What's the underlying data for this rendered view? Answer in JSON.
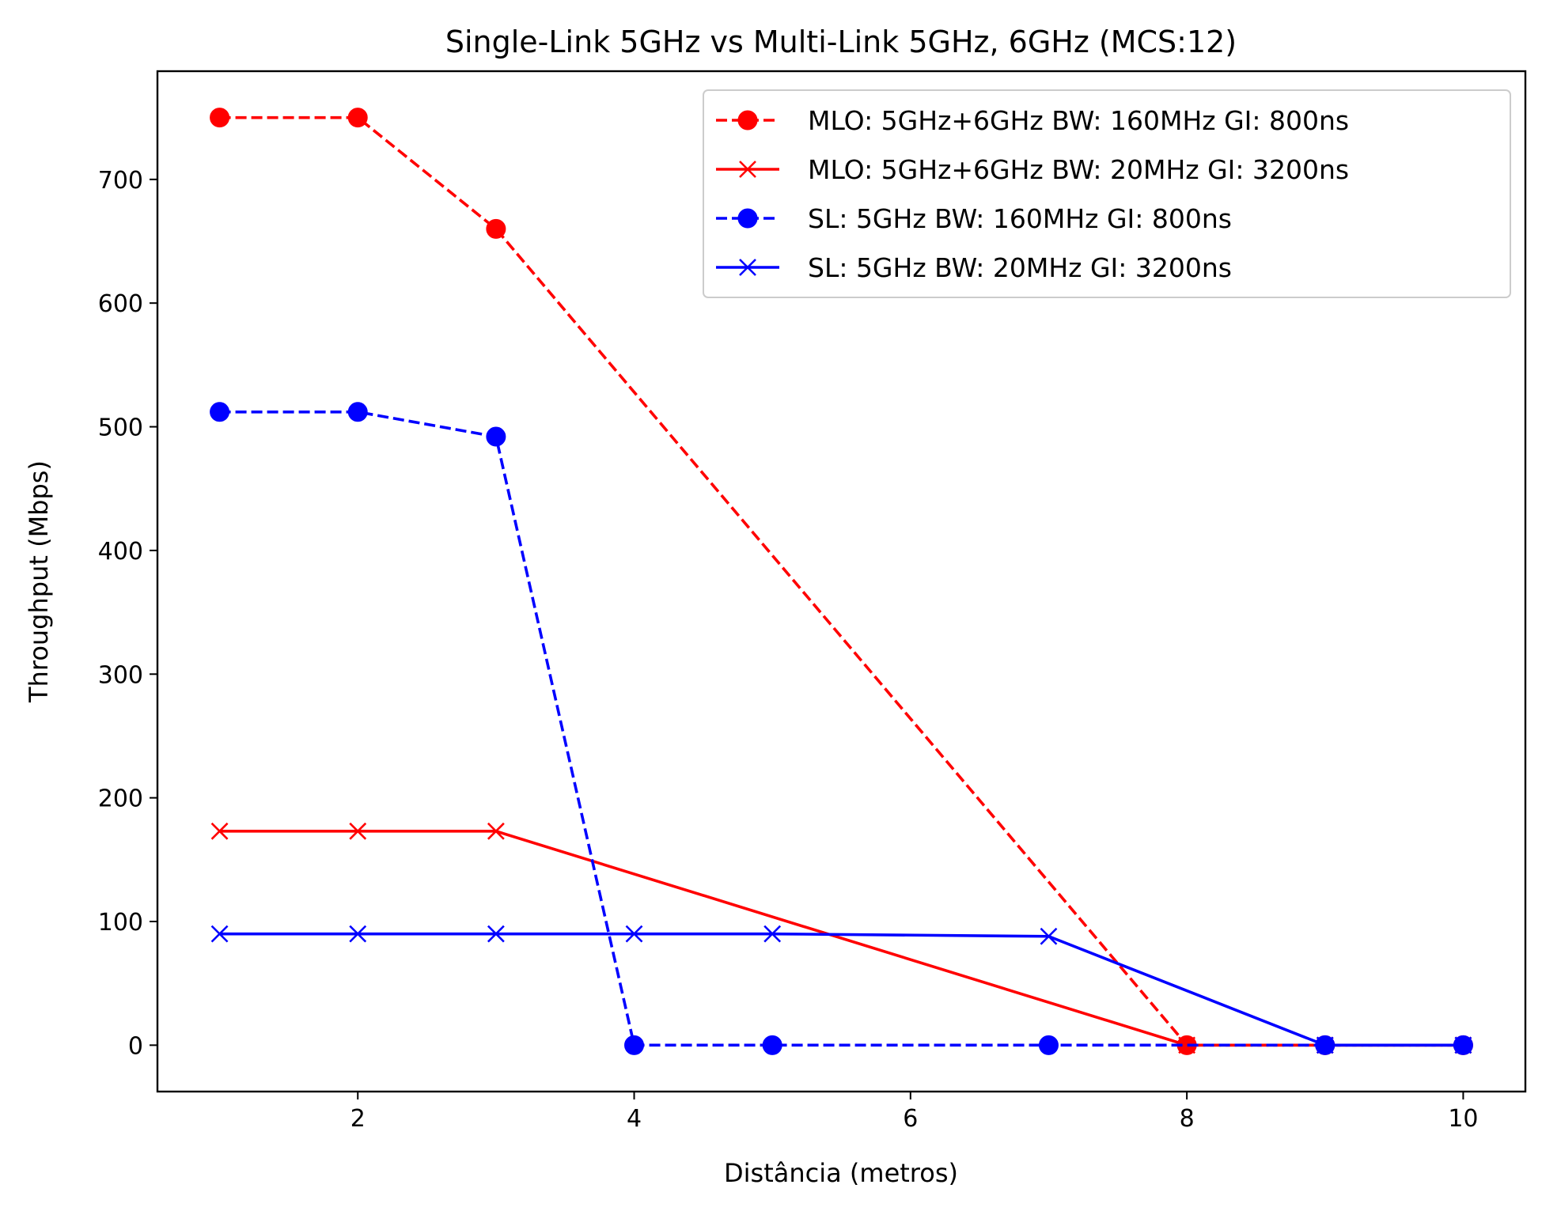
{
  "chart_data": {
    "type": "line",
    "title": "Single-Link 5GHz vs Multi-Link 5GHz, 6GHz (MCS:12)",
    "xlabel": "Distância (metros)",
    "ylabel": "Throughput (Mbps)",
    "xlim": [
      0.55,
      10.45
    ],
    "ylim": [
      -37.5,
      787.5
    ],
    "xticks": [
      2,
      4,
      6,
      8,
      10
    ],
    "yticks": [
      0,
      100,
      200,
      300,
      400,
      500,
      600,
      700
    ],
    "grid": false,
    "legend_position": "top-right",
    "series": [
      {
        "name": "MLO: 5GHz+6GHz BW: 160MHz GI: 800ns",
        "color": "#ff0000",
        "linestyle": "dashed",
        "marker": "circle",
        "x": [
          1,
          2,
          3,
          8,
          9,
          10
        ],
        "y": [
          750,
          750,
          660,
          0,
          0,
          0
        ]
      },
      {
        "name": "MLO: 5GHz+6GHz BW: 20MHz GI: 3200ns",
        "color": "#ff0000",
        "linestyle": "solid",
        "marker": "x",
        "x": [
          1,
          2,
          3,
          8,
          9,
          10
        ],
        "y": [
          173,
          173,
          173,
          0,
          0,
          0
        ]
      },
      {
        "name": "SL: 5GHz BW: 160MHz GI: 800ns",
        "color": "#0000ff",
        "linestyle": "dashed",
        "marker": "circle",
        "x": [
          1,
          2,
          3,
          4,
          5,
          7,
          9,
          10
        ],
        "y": [
          512,
          512,
          492,
          0,
          0,
          0,
          0,
          0
        ]
      },
      {
        "name": "SL: 5GHz BW: 20MHz GI: 3200ns",
        "color": "#0000ff",
        "linestyle": "solid",
        "marker": "x",
        "x": [
          1,
          2,
          3,
          4,
          5,
          7,
          9,
          10
        ],
        "y": [
          90,
          90,
          90,
          90,
          90,
          88,
          0,
          0
        ]
      }
    ]
  }
}
